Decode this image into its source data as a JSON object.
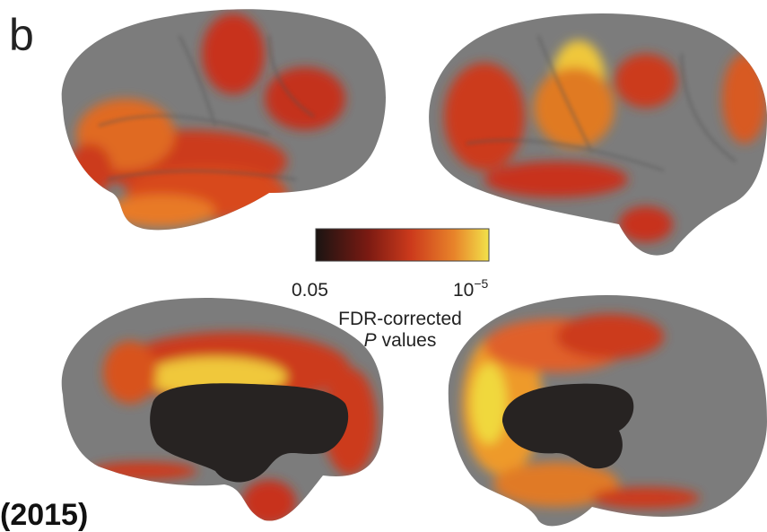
{
  "panel_label": "b",
  "colorbar": {
    "min_label": "0.05",
    "max_label": {
      "base": "10",
      "exponent": "−5"
    },
    "title": {
      "line1": "FDR-corrected",
      "symbol": "P",
      "line2": "values"
    }
  },
  "footer": "(2015)"
}
